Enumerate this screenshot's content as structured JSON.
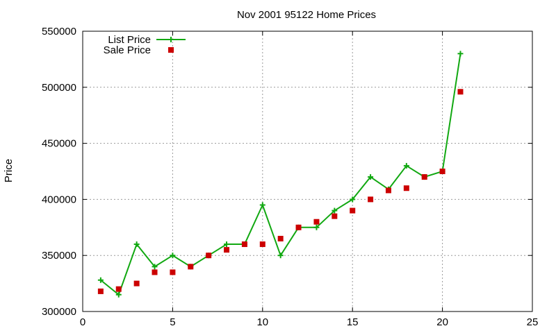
{
  "chart_data": {
    "type": "line",
    "title": "Nov 2001 95122 Home Prices",
    "xlabel": "",
    "ylabel": "Price",
    "xlim": [
      0,
      25
    ],
    "ylim": [
      300000,
      550000
    ],
    "xticks": [
      0,
      5,
      10,
      15,
      20,
      25
    ],
    "yticks": [
      300000,
      350000,
      400000,
      450000,
      500000,
      550000
    ],
    "grid": true,
    "legend_position": "top-left",
    "series": [
      {
        "name": "List Price",
        "style": "line-with-plus-markers",
        "color": "#11a811",
        "x": [
          1,
          2,
          3,
          4,
          5,
          6,
          7,
          8,
          9,
          10,
          11,
          12,
          13,
          14,
          15,
          16,
          17,
          18,
          19,
          20,
          21
        ],
        "y": [
          328000,
          315000,
          360000,
          340000,
          350000,
          340000,
          350000,
          360000,
          360000,
          395000,
          350000,
          375000,
          375000,
          390000,
          400000,
          420000,
          409000,
          430000,
          420000,
          425000,
          530000
        ]
      },
      {
        "name": "Sale Price",
        "style": "square-markers",
        "color": "#cc0000",
        "x": [
          1,
          2,
          3,
          4,
          5,
          6,
          7,
          8,
          9,
          10,
          11,
          12,
          13,
          14,
          15,
          16,
          17,
          18,
          19,
          20,
          21
        ],
        "y": [
          318000,
          320000,
          325000,
          335000,
          335000,
          340000,
          350000,
          355000,
          360000,
          360000,
          365000,
          375000,
          380000,
          385000,
          390000,
          400000,
          408000,
          410000,
          420000,
          425000,
          496000
        ]
      }
    ]
  }
}
